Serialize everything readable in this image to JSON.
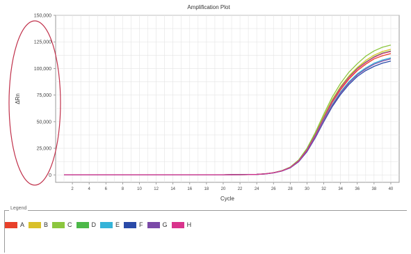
{
  "chart_data": {
    "type": "line",
    "title": "Amplification Plot",
    "xlabel": "Cycle",
    "ylabel": "ΔRn",
    "xlim": [
      0,
      41
    ],
    "ylim": [
      -7000,
      150000
    ],
    "x_ticks": [
      2,
      4,
      6,
      8,
      10,
      12,
      14,
      16,
      18,
      20,
      22,
      24,
      26,
      28,
      30,
      32,
      34,
      36,
      38,
      40
    ],
    "y_ticks": [
      {
        "value": 0,
        "label": "0"
      },
      {
        "value": 25000,
        "label": "25,000"
      },
      {
        "value": 50000,
        "label": "50,000"
      },
      {
        "value": 75000,
        "label": "75,000"
      },
      {
        "value": 100000,
        "label": "100,000"
      },
      {
        "value": 125000,
        "label": "125,000"
      },
      {
        "value": 150000,
        "label": "150,000"
      }
    ],
    "grid": true,
    "x": [
      1,
      2,
      3,
      4,
      5,
      6,
      7,
      8,
      9,
      10,
      11,
      12,
      13,
      14,
      15,
      16,
      17,
      18,
      19,
      20,
      21,
      22,
      23,
      24,
      25,
      26,
      27,
      28,
      29,
      30,
      31,
      32,
      33,
      34,
      35,
      36,
      37,
      38,
      39,
      40
    ],
    "series": [
      {
        "name": "A",
        "color": "#e8402a",
        "values": [
          100,
          100,
          100,
          100,
          100,
          100,
          100,
          100,
          100,
          100,
          100,
          100,
          100,
          100,
          100,
          100,
          100,
          100,
          100,
          100,
          150,
          200,
          300,
          500,
          1000,
          2000,
          3800,
          7000,
          13000,
          23000,
          37000,
          53000,
          68000,
          80000,
          90000,
          98000,
          104000,
          109000,
          112000,
          114000
        ]
      },
      {
        "name": "B",
        "color": "#d9c02a",
        "values": [
          100,
          100,
          100,
          100,
          100,
          100,
          100,
          100,
          100,
          100,
          100,
          100,
          100,
          100,
          100,
          100,
          100,
          100,
          100,
          100,
          150,
          200,
          300,
          500,
          1000,
          2000,
          3900,
          7200,
          13500,
          24000,
          38500,
          55000,
          70500,
          83000,
          93000,
          101000,
          107500,
          112500,
          116000,
          118000
        ]
      },
      {
        "name": "C",
        "color": "#8cc63e",
        "values": [
          100,
          100,
          100,
          100,
          100,
          100,
          100,
          100,
          100,
          100,
          100,
          100,
          100,
          100,
          100,
          100,
          100,
          100,
          100,
          100,
          150,
          200,
          300,
          500,
          1000,
          2100,
          4000,
          7400,
          14000,
          25000,
          40000,
          57000,
          73000,
          86000,
          96500,
          104500,
          111500,
          116500,
          120000,
          122000
        ]
      },
      {
        "name": "D",
        "color": "#4cb848",
        "values": [
          100,
          100,
          100,
          100,
          100,
          100,
          100,
          100,
          100,
          100,
          100,
          100,
          100,
          100,
          100,
          100,
          100,
          100,
          100,
          100,
          150,
          200,
          300,
          500,
          1000,
          2000,
          3850,
          7100,
          13300,
          23600,
          38000,
          54000,
          69500,
          82000,
          92000,
          100000,
          106000,
          111000,
          114500,
          116500
        ]
      },
      {
        "name": "E",
        "color": "#35b3d8",
        "values": [
          100,
          100,
          100,
          100,
          100,
          100,
          100,
          100,
          100,
          100,
          100,
          100,
          100,
          100,
          100,
          100,
          100,
          100,
          100,
          100,
          150,
          200,
          300,
          500,
          950,
          1900,
          3700,
          6800,
          12700,
          22500,
          36000,
          51500,
          66000,
          78000,
          87500,
          95000,
          100500,
          105000,
          108000,
          110000
        ]
      },
      {
        "name": "F",
        "color": "#2a4aa8",
        "values": [
          100,
          100,
          100,
          100,
          100,
          100,
          100,
          100,
          100,
          100,
          100,
          100,
          100,
          100,
          100,
          100,
          100,
          100,
          100,
          100,
          150,
          200,
          300,
          480,
          900,
          1850,
          3600,
          6600,
          12300,
          21800,
          35000,
          50000,
          64000,
          75500,
          85000,
          92500,
          98000,
          102000,
          105000,
          107000
        ]
      },
      {
        "name": "G",
        "color": "#7b4aa8",
        "values": [
          100,
          100,
          100,
          100,
          100,
          100,
          100,
          100,
          100,
          100,
          100,
          100,
          100,
          100,
          100,
          100,
          100,
          100,
          100,
          100,
          150,
          200,
          300,
          490,
          930,
          1900,
          3650,
          6700,
          12500,
          22200,
          35500,
          50800,
          65000,
          77000,
          86500,
          94000,
          99500,
          104000,
          107000,
          109000
        ]
      },
      {
        "name": "H",
        "color": "#d9338c",
        "values": [
          100,
          100,
          100,
          100,
          100,
          100,
          100,
          100,
          100,
          100,
          100,
          100,
          100,
          100,
          100,
          100,
          100,
          100,
          100,
          100,
          150,
          200,
          300,
          500,
          980,
          1980,
          3800,
          7000,
          13100,
          23300,
          37500,
          53500,
          69000,
          81500,
          91500,
          99500,
          105500,
          110500,
          114000,
          116000
        ]
      }
    ],
    "annotation": {
      "type": "ellipse",
      "color": "#c0304a",
      "around": "y-axis tick labels"
    }
  },
  "legend": {
    "title": "Legend",
    "items": [
      {
        "label": "A",
        "color": "#e8402a"
      },
      {
        "label": "B",
        "color": "#d9c02a"
      },
      {
        "label": "C",
        "color": "#8cc63e"
      },
      {
        "label": "D",
        "color": "#4cb848"
      },
      {
        "label": "E",
        "color": "#35b3d8"
      },
      {
        "label": "F",
        "color": "#2a4aa8"
      },
      {
        "label": "G",
        "color": "#7b4aa8"
      },
      {
        "label": "H",
        "color": "#d9338c"
      }
    ]
  }
}
